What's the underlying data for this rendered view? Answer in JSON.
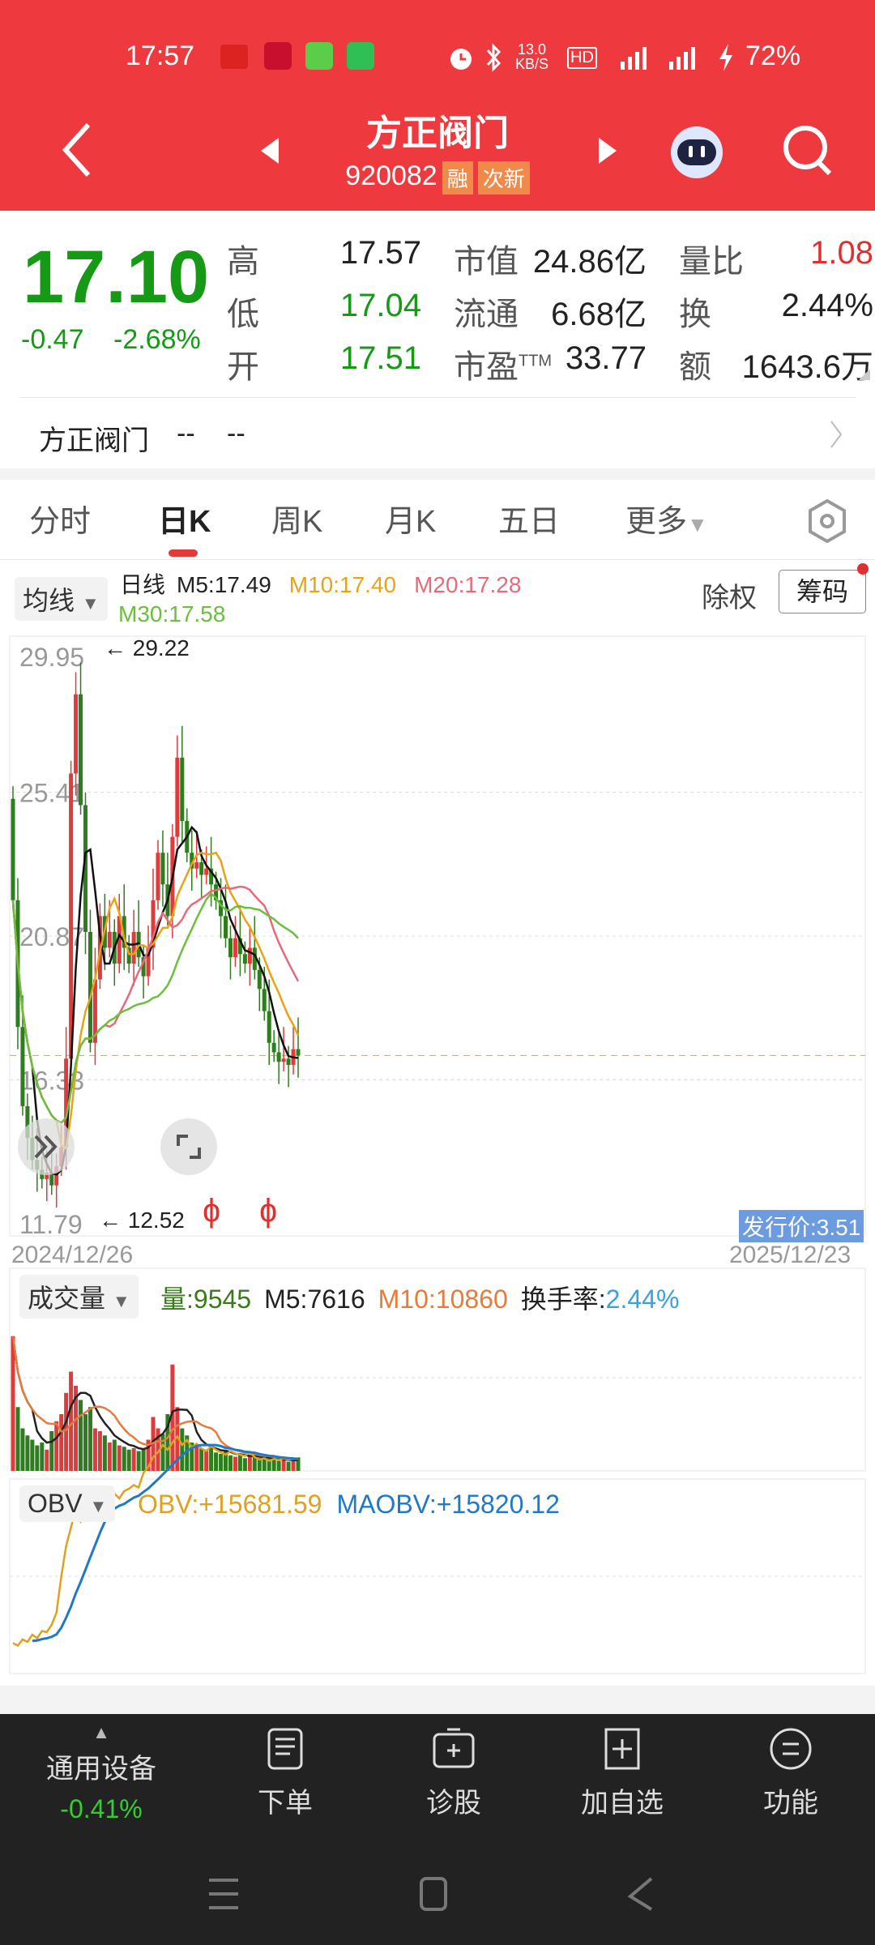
{
  "status": {
    "time": "17:57",
    "net_speed": "13.0",
    "net_unit": "KB/S",
    "battery": "72%"
  },
  "header": {
    "title": "方正阀门",
    "code": "920082",
    "tags": [
      "融",
      "次新"
    ]
  },
  "quote": {
    "price": "17.10",
    "change": "-0.47",
    "change_pct": "-2.68%",
    "rows": [
      {
        "l1": "高",
        "v1": "17.57",
        "l2": "市值",
        "v2": "24.86亿",
        "l3": "量比",
        "v3": "1.08"
      },
      {
        "l1": "低",
        "v1": "17.04",
        "l2": "流通",
        "v2": "6.68亿",
        "l3": "换",
        "v3": "2.44%"
      },
      {
        "l1": "开",
        "v1": "17.51",
        "l2": "市盈",
        "l2sup": "TTM",
        "v2": "33.77",
        "l3": "额",
        "v3": "1643.6万"
      }
    ]
  },
  "related": {
    "name": "方正阀门",
    "v1": "--",
    "v2": "--"
  },
  "tabs": [
    {
      "label": "分时"
    },
    {
      "label": "日K",
      "active": true
    },
    {
      "label": "周K"
    },
    {
      "label": "月K"
    },
    {
      "label": "五日"
    },
    {
      "label": "更多"
    }
  ],
  "kline": {
    "ma_select": "均线",
    "period": "日线",
    "m5": "M5:17.49",
    "m10": "M10:17.40",
    "m20": "M20:17.28",
    "m30": "M30:17.58",
    "exright": "除权",
    "chips": "筹码",
    "high_mark": "29.22",
    "low_mark": "12.52",
    "issue_price": "发行价:3.51",
    "start_date": "2024/12/26",
    "end_date": "2025/12/23"
  },
  "volume": {
    "select": "成交量",
    "vol": "量:9545",
    "m5": "M5:7616",
    "m10": "M10:10860",
    "turn_label": "换手率:",
    "turn": "2.44%"
  },
  "obv": {
    "select": "OBV",
    "obv": "OBV:+15681.59",
    "maobv": "MAOBV:+15820.12"
  },
  "bottom": {
    "sector": "通用设备",
    "sector_pct": "-0.41%",
    "items": [
      {
        "label": "下单",
        "icon": "order-icon"
      },
      {
        "label": "诊股",
        "icon": "diagnose-icon"
      },
      {
        "label": "加自选",
        "icon": "add-watchlist-icon"
      },
      {
        "label": "功能",
        "icon": "menu-icon"
      }
    ]
  },
  "colors": {
    "up": "#e03a3a",
    "down": "#2e7d1e",
    "m5": "#111111",
    "m10": "#e8a317",
    "m20": "#e86a7a",
    "m30": "#6cbf3c",
    "obv": "#e0a020",
    "maobv": "#1f78c8",
    "header": "#ee3a3f"
  },
  "chart_data": [
    {
      "type": "candlestick",
      "yticks": [
        "29.95",
        "25.41",
        "20.87",
        "16.33",
        "11.79"
      ],
      "ylim": [
        11.79,
        29.95
      ],
      "current": 17.1,
      "close": [
        22.0,
        18,
        15.5,
        14.5,
        13.8,
        13.5,
        13.2,
        13.4,
        13.0,
        13.6,
        14.2,
        17,
        26,
        28.5,
        25,
        21,
        17.5,
        19.5,
        21.5,
        20.5,
        21,
        20,
        21.5,
        20.5,
        20,
        21,
        20.2,
        19.6,
        20.5,
        22,
        23.5,
        22.5,
        21.5,
        24,
        26.5,
        24.5,
        23.5,
        23,
        23.2,
        22.8,
        23,
        22.5,
        22,
        21.5,
        20.8,
        20.2,
        20.8,
        20.3,
        20,
        20.5,
        19.8,
        19.2,
        18.5,
        17.5,
        17.2,
        16.9,
        17.0,
        16.8,
        17.3,
        17.1
      ]
    },
    {
      "type": "bar",
      "name": "成交量",
      "values": [
        95000,
        45000,
        30000,
        25000,
        22000,
        18000,
        20000,
        15000,
        28000,
        35000,
        40000,
        55000,
        70000,
        60000,
        50000,
        40000,
        45000,
        30000,
        28000,
        25000,
        20000,
        22000,
        18000,
        17000,
        15000,
        16000,
        14000,
        15000,
        22000,
        38000,
        30000,
        26000,
        40000,
        75000,
        45000,
        30000,
        25000,
        20000,
        18000,
        16000,
        15000,
        17000,
        13000,
        12000,
        14000,
        11000,
        10000,
        12000,
        9000,
        11000,
        10000,
        9500,
        8000,
        9000,
        8500,
        7000,
        8000,
        6500,
        7500,
        9545
      ]
    },
    {
      "type": "line",
      "name": "OBV",
      "values": [
        500,
        300,
        800,
        600,
        1200,
        900,
        1500,
        1400,
        2000,
        3000,
        6000,
        8500,
        10000,
        11500,
        10500,
        11000,
        11800,
        11300,
        12200,
        12000,
        12500,
        12800,
        12400,
        13000,
        13200,
        13500,
        13300,
        14500,
        15000,
        15800,
        16200,
        16800,
        16400,
        17000,
        17500,
        16800,
        17200,
        16600,
        16900,
        16500,
        16300,
        16700,
        16400,
        16200,
        16000,
        16300,
        16100,
        16000,
        15900,
        16200,
        15800,
        15600,
        15700,
        15500,
        15650,
        15550,
        15700,
        15600,
        15650,
        15681.59
      ]
    }
  ]
}
